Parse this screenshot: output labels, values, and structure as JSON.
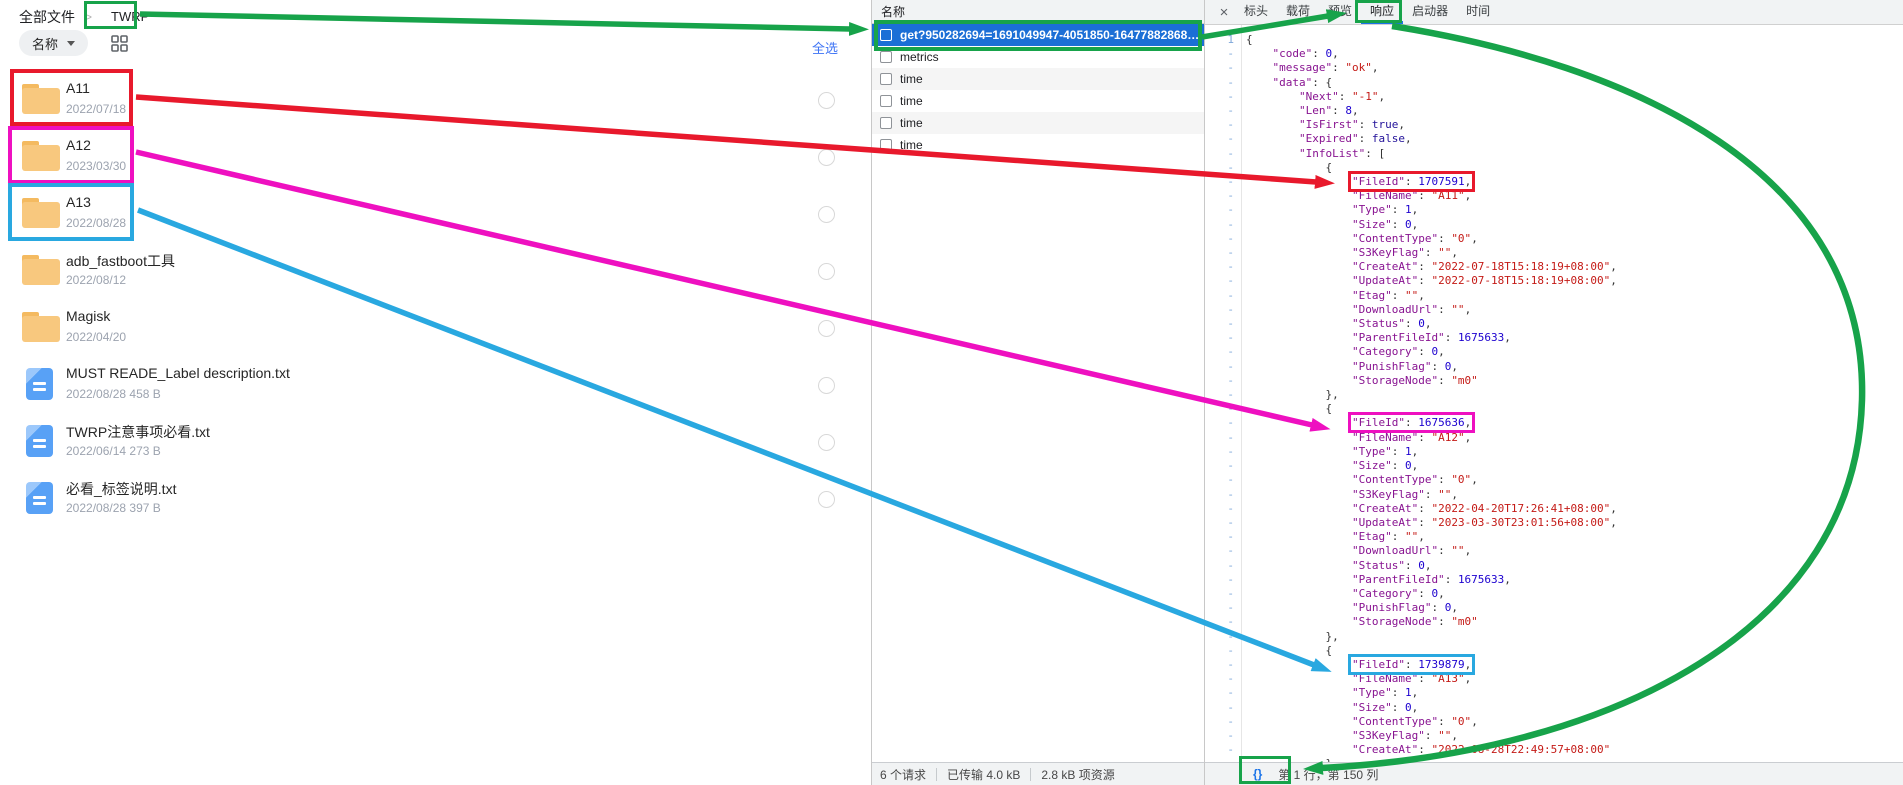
{
  "colors": {
    "annotation_green": "#17a34a",
    "annotation_red": "#e8192c",
    "annotation_magenta": "#ee10c0",
    "annotation_cyan": "#29a8e0",
    "selected_row_blue": "#1b6fd6",
    "devtools_accent_blue": "#1a73e8",
    "link_blue": "#3d73f5",
    "folder_orange": "#f8c87e",
    "doc_icon_blue": "#58a1f6",
    "json_key": "#881391",
    "json_string": "#c41a16",
    "json_number": "#1c00cf",
    "json_boolean": "#221199"
  },
  "file_panel": {
    "breadcrumb": {
      "root": "全部文件",
      "separator": ">",
      "current": "TWRP"
    },
    "sort_button": {
      "label": "名称"
    },
    "select_all_label": "全选",
    "items": [
      {
        "name": "A11",
        "meta": "2022/07/18",
        "type": "folder"
      },
      {
        "name": "A12",
        "meta": "2023/03/30",
        "type": "folder"
      },
      {
        "name": "A13",
        "meta": "2022/08/28",
        "type": "folder"
      },
      {
        "name": "adb_fastboot工具",
        "meta": "2022/08/12",
        "type": "folder"
      },
      {
        "name": "Magisk",
        "meta": "2022/04/20",
        "type": "folder"
      },
      {
        "name": "MUST READE_Label description.txt",
        "meta": "2022/08/28 458 B",
        "type": "file"
      },
      {
        "name": "TWRP注意事项必看.txt",
        "meta": "2022/06/14 273 B",
        "type": "file"
      },
      {
        "name": "必看_标签说明.txt",
        "meta": "2022/08/28 397 B",
        "type": "file"
      }
    ]
  },
  "network_panel": {
    "header": "名称",
    "requests": [
      {
        "name": "get?950282694=1691049947-4051850-16477882868&l…",
        "selected": true
      },
      {
        "name": "metrics",
        "selected": false
      },
      {
        "name": "time",
        "selected": false
      },
      {
        "name": "time",
        "selected": false
      },
      {
        "name": "time",
        "selected": false
      },
      {
        "name": "time",
        "selected": false
      }
    ],
    "status": [
      "6 个请求",
      "已传输 4.0 kB",
      "2.8 kB 项资源"
    ]
  },
  "detail_panel": {
    "close_label": "×",
    "tabs": [
      {
        "label": "标头",
        "active": false
      },
      {
        "label": "载荷",
        "active": false
      },
      {
        "label": "预览",
        "active": false
      },
      {
        "label": "响应",
        "active": true
      },
      {
        "label": "启动器",
        "active": false
      },
      {
        "label": "时间",
        "active": false
      }
    ],
    "gutter_first_line": "1",
    "gutter_wrap_marker": "-",
    "status": {
      "format_button": "{}",
      "caret_position": "第 1 行，第 150 列"
    },
    "response_json": {
      "code": 0,
      "message": "ok",
      "data": {
        "Next": "-1",
        "Len": 8,
        "IsFirst": true,
        "Expired": false,
        "InfoList": [
          {
            "FileId": 1707591,
            "FileName": "A11",
            "Type": 1,
            "Size": 0,
            "ContentType": "0",
            "S3KeyFlag": "",
            "CreateAt": "2022-07-18T15:18:19+08:00",
            "UpdateAt": "2022-07-18T15:18:19+08:00",
            "Etag": "",
            "DownloadUrl": "",
            "Status": 0,
            "ParentFileId": 1675633,
            "Category": 0,
            "PunishFlag": 0,
            "StorageNode": "m0"
          },
          {
            "FileId": 1675636,
            "FileName": "A12",
            "Type": 1,
            "Size": 0,
            "ContentType": "0",
            "S3KeyFlag": "",
            "CreateAt": "2022-04-20T17:26:41+08:00",
            "UpdateAt": "2023-03-30T23:01:56+08:00",
            "Etag": "",
            "DownloadUrl": "",
            "Status": 0,
            "ParentFileId": 1675633,
            "Category": 0,
            "PunishFlag": 0,
            "StorageNode": "m0"
          },
          {
            "FileId": 1739879,
            "FileName": "A13",
            "Type": 1,
            "Size": 0,
            "ContentType": "0",
            "S3KeyFlag": "",
            "CreateAt": "2022-08-28T22:49:57+08:00"
          }
        ]
      }
    }
  },
  "annotations": {
    "fileid_highlight_order": [
      "red",
      "magenta",
      "cyan"
    ]
  }
}
